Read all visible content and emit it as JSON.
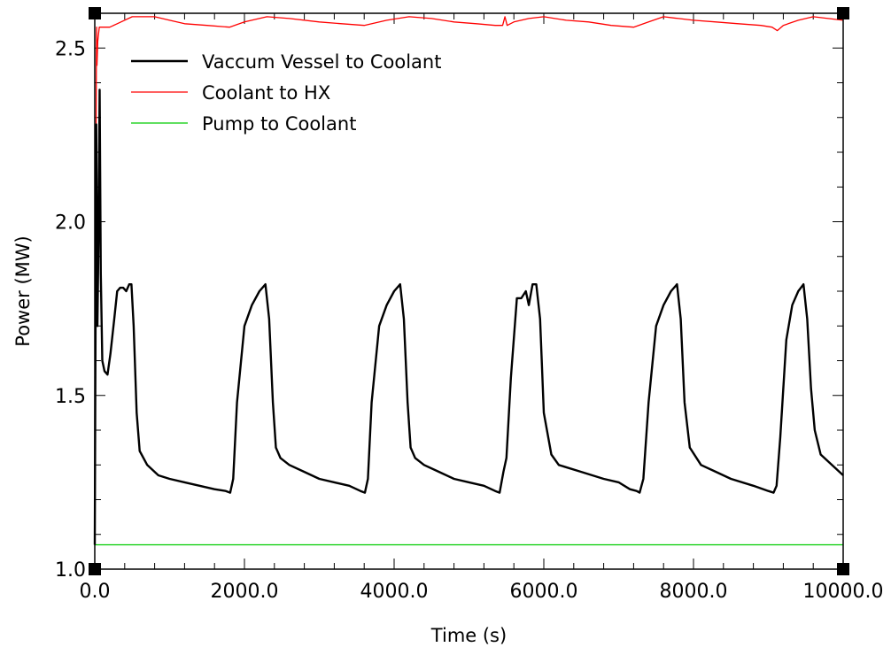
{
  "chart_data": {
    "type": "line",
    "xlabel": "Time (s)",
    "ylabel": "Power (MW)",
    "xlim": [
      0,
      10000
    ],
    "ylim": [
      1.0,
      2.6
    ],
    "x_ticks": [
      0,
      2000,
      4000,
      6000,
      8000,
      10000
    ],
    "x_tick_labels": [
      "0.0",
      "2000.0",
      "4000.0",
      "6000.0",
      "8000.0",
      "10000.0"
    ],
    "y_ticks": [
      1.0,
      1.5,
      2.0,
      2.5
    ],
    "y_tick_labels": [
      "1.0",
      "1.5",
      "2.0",
      "2.5"
    ],
    "grid": false,
    "legend_position": "top-left",
    "series": [
      {
        "name": "Vaccum Vessel to Coolant",
        "color": "#000000",
        "x": [
          0,
          20,
          35,
          50,
          65,
          80,
          100,
          130,
          170,
          210,
          260,
          300,
          340,
          380,
          420,
          460,
          490,
          520,
          560,
          600,
          700,
          850,
          1000,
          1200,
          1400,
          1600,
          1750,
          1810,
          1850,
          1900,
          2000,
          2100,
          2200,
          2280,
          2330,
          2380,
          2420,
          2480,
          2600,
          2800,
          3000,
          3200,
          3400,
          3550,
          3610,
          3650,
          3700,
          3800,
          3900,
          4000,
          4080,
          4130,
          4180,
          4220,
          4280,
          4400,
          4600,
          4800,
          5000,
          5200,
          5350,
          5410,
          5460,
          5500,
          5560,
          5640,
          5700,
          5760,
          5800,
          5850,
          5900,
          5950,
          6000,
          6100,
          6200,
          6500,
          6800,
          7000,
          7150,
          7240,
          7280,
          7330,
          7400,
          7500,
          7600,
          7700,
          7780,
          7830,
          7880,
          7950,
          8100,
          8300,
          8500,
          8800,
          9000,
          9070,
          9110,
          9160,
          9240,
          9320,
          9400,
          9470,
          9520,
          9570,
          9620,
          9700,
          9850,
          10000
        ],
        "y": [
          1.07,
          2.28,
          1.7,
          1.95,
          2.38,
          1.85,
          1.6,
          1.57,
          1.56,
          1.62,
          1.72,
          1.8,
          1.81,
          1.81,
          1.8,
          1.82,
          1.82,
          1.7,
          1.45,
          1.34,
          1.3,
          1.27,
          1.26,
          1.25,
          1.24,
          1.23,
          1.225,
          1.22,
          1.26,
          1.48,
          1.7,
          1.76,
          1.8,
          1.82,
          1.72,
          1.48,
          1.35,
          1.32,
          1.3,
          1.28,
          1.26,
          1.25,
          1.24,
          1.225,
          1.22,
          1.26,
          1.48,
          1.7,
          1.76,
          1.8,
          1.82,
          1.72,
          1.48,
          1.35,
          1.32,
          1.3,
          1.28,
          1.26,
          1.25,
          1.24,
          1.225,
          1.22,
          1.28,
          1.32,
          1.55,
          1.78,
          1.78,
          1.8,
          1.76,
          1.82,
          1.82,
          1.72,
          1.45,
          1.33,
          1.3,
          1.28,
          1.26,
          1.25,
          1.23,
          1.225,
          1.22,
          1.26,
          1.48,
          1.7,
          1.76,
          1.8,
          1.82,
          1.72,
          1.48,
          1.35,
          1.3,
          1.28,
          1.26,
          1.24,
          1.225,
          1.22,
          1.24,
          1.38,
          1.66,
          1.76,
          1.8,
          1.82,
          1.72,
          1.52,
          1.4,
          1.33,
          1.3,
          1.27
        ]
      },
      {
        "name": "Coolant to HX",
        "color": "#ff0000",
        "x": [
          0,
          10,
          20,
          25,
          30,
          40,
          60,
          100,
          200,
          300,
          500,
          800,
          1000,
          1200,
          1500,
          1800,
          2000,
          2300,
          2600,
          3000,
          3300,
          3600,
          3900,
          4200,
          4500,
          4800,
          5100,
          5350,
          5450,
          5480,
          5510,
          5600,
          5800,
          6000,
          6300,
          6600,
          6900,
          7200,
          7400,
          7600,
          7800,
          8000,
          8300,
          8600,
          8900,
          9050,
          9120,
          9200,
          9400,
          9600,
          9800,
          10000
        ],
        "y": [
          1.07,
          1.8,
          2.4,
          2.56,
          2.45,
          2.52,
          2.56,
          2.56,
          2.56,
          2.57,
          2.59,
          2.59,
          2.58,
          2.57,
          2.565,
          2.56,
          2.575,
          2.59,
          2.585,
          2.575,
          2.57,
          2.565,
          2.58,
          2.59,
          2.585,
          2.575,
          2.57,
          2.565,
          2.565,
          2.59,
          2.565,
          2.575,
          2.585,
          2.59,
          2.58,
          2.575,
          2.565,
          2.56,
          2.575,
          2.59,
          2.585,
          2.58,
          2.575,
          2.57,
          2.565,
          2.56,
          2.55,
          2.565,
          2.58,
          2.59,
          2.585,
          2.58
        ]
      },
      {
        "name": "Pump to Coolant",
        "color": "#00cc00",
        "x": [
          0,
          10000
        ],
        "y": [
          1.07,
          1.07
        ]
      }
    ]
  }
}
